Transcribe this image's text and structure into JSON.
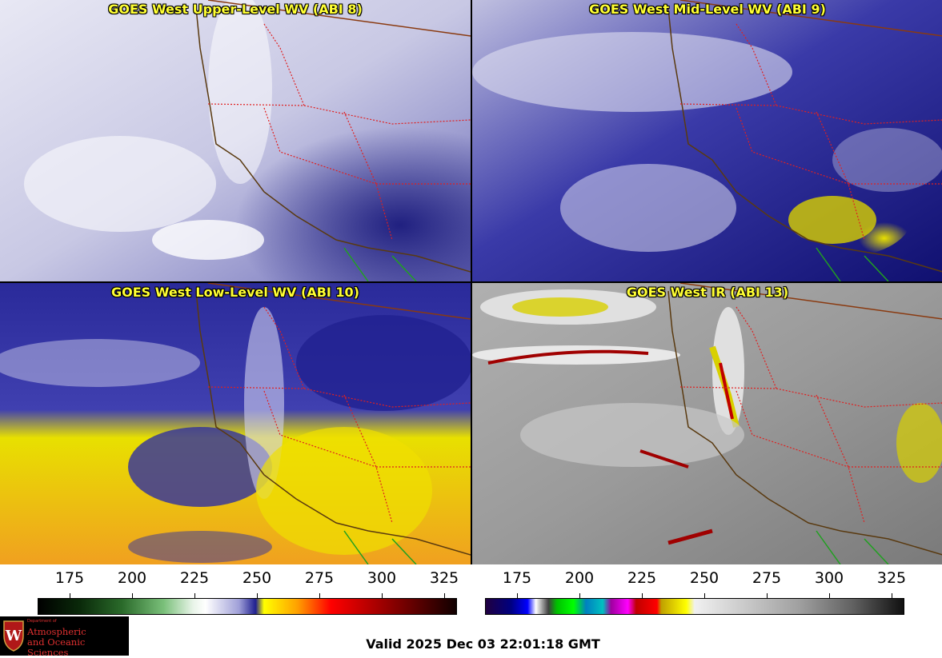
{
  "panels": [
    {
      "id": "abi8",
      "title": "GOES West Upper-Level WV (ABI 8)"
    },
    {
      "id": "abi9",
      "title": "GOES West Mid-Level WV (ABI 9)"
    },
    {
      "id": "abi10",
      "title": "GOES West Low-Level WV (ABI 10)"
    },
    {
      "id": "abi13",
      "title": "GOES West IR (ABI 13)"
    }
  ],
  "colorbar_wv": {
    "ticks": [
      "175",
      "200",
      "225",
      "250",
      "275",
      "300",
      "325"
    ],
    "colors": [
      "#000000",
      "#0a3a0a",
      "#3d8a3d",
      "#a8d8a8",
      "#ffffff",
      "#c8c8e8",
      "#2020a0",
      "#ffff00",
      "#ff8000",
      "#ff0000",
      "#a00000",
      "#200000"
    ]
  },
  "colorbar_ir": {
    "ticks": [
      "175",
      "200",
      "225",
      "250",
      "275",
      "300",
      "325"
    ]
  },
  "logo": {
    "line_small": "Department of",
    "line1": "Atmospheric",
    "line2": "and Oceanic Sciences"
  },
  "valid_time": "Valid 2025 Dec 03 22:01:18 GMT"
}
